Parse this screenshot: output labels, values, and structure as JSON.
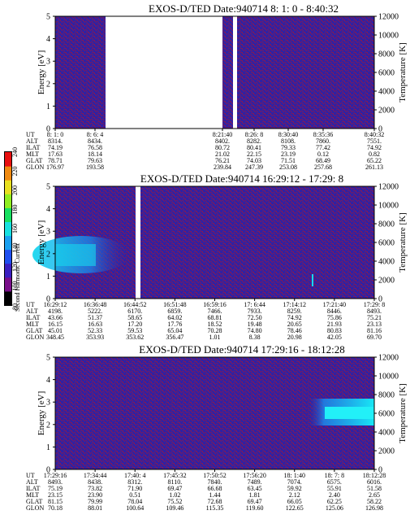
{
  "panels": [
    {
      "title": "EXOS-D/TED   Date:940714   8: 1: 0 - 8:40:32",
      "left_axis": {
        "label": "Energy [eV]",
        "range": [
          0,
          5
        ],
        "ticks": [
          "0",
          "1",
          "2",
          "3",
          "4",
          "5"
        ]
      },
      "right_axis": {
        "label": "Temperature [K]",
        "range": [
          0,
          12000
        ],
        "ticks": [
          "0",
          "2000",
          "4000",
          "6000",
          "8000",
          "10000",
          "12000"
        ]
      },
      "row_labels": [
        "UT",
        "ALT",
        "ILAT",
        "MLT",
        "GLAT",
        "GLON"
      ],
      "columns": [
        [
          "8: 1: 0",
          "8314.",
          "74.19",
          "17.63",
          "78.71",
          "176.97"
        ],
        [
          "8: 6: 4",
          "8434.",
          "76.58",
          "18.14",
          "79.63",
          "193.58"
        ],
        [
          "8:21:40",
          "8402.",
          "80.72",
          "21.02",
          "76.21",
          "239.84"
        ],
        [
          "8:26: 8",
          "8282.",
          "80.41",
          "22.15",
          "74.03",
          "247.39"
        ],
        [
          "8:30:40",
          "8108.",
          "79.33",
          "23.19",
          "71.51",
          "253.08"
        ],
        [
          "8:35:36",
          "7860.",
          "77.42",
          "0.12",
          "68.49",
          "257.68"
        ],
        [
          "8:40:32",
          "7551.",
          "74.92",
          "0.82",
          "65.22",
          "261.13"
        ]
      ]
    },
    {
      "title": "EXOS-D/TED   Date:940714   16:29:12 - 17:29: 8",
      "left_axis": {
        "label": "Energy [eV]",
        "range": [
          0,
          5
        ],
        "ticks": [
          "0",
          "1",
          "2",
          "3",
          "4",
          "5"
        ]
      },
      "right_axis": {
        "label": "Temperature [K]",
        "range": [
          0,
          12000
        ],
        "ticks": [
          "0",
          "2000",
          "4000",
          "6000",
          "8000",
          "10000",
          "12000"
        ]
      },
      "row_labels": [
        "UT",
        "ALT",
        "ILAT",
        "MLT",
        "GLAT",
        "GLON"
      ],
      "columns": [
        [
          "16:29:12",
          "4198.",
          "43.66",
          "16.15",
          "45.01",
          "348.45"
        ],
        [
          "16:36:48",
          "5222.",
          "51.37",
          "16.63",
          "52.33",
          "353.93"
        ],
        [
          "16:44:52",
          "6170.",
          "58.65",
          "17.20",
          "59.53",
          "353.62"
        ],
        [
          "16:51:48",
          "6859.",
          "64.02",
          "17.76",
          "65.04",
          "356.47"
        ],
        [
          "16:59:16",
          "7466.",
          "68.81",
          "18.52",
          "70.28",
          "1.01"
        ],
        [
          "17: 6:44",
          "7933.",
          "72.50",
          "19.48",
          "74.80",
          "8.38"
        ],
        [
          "17:14:12",
          "8259.",
          "74.92",
          "20.65",
          "78.46",
          "20.98"
        ],
        [
          "17:21:40",
          "8446.",
          "75.86",
          "21.93",
          "80.83",
          "42.05"
        ],
        [
          "17:29: 8",
          "8493.",
          "75.21",
          "23.13",
          "81.16",
          "69.70"
        ]
      ]
    },
    {
      "title": "EXOS-D/TED   Date:940714   17:29:16 - 18:12:28",
      "left_axis": {
        "label": "Energy [eV]",
        "range": [
          0,
          5
        ],
        "ticks": [
          "0",
          "1",
          "2",
          "3",
          "4",
          "5"
        ]
      },
      "right_axis": {
        "label": "Temperature [K]",
        "range": [
          0,
          12000
        ],
        "ticks": [
          "0",
          "2000",
          "4000",
          "6000",
          "8000",
          "10000",
          "12000"
        ]
      },
      "row_labels": [
        "UT",
        "ALT",
        "ILAT",
        "MLT",
        "GLAT",
        "GLON"
      ],
      "columns": [
        [
          "17:29:16",
          "8493.",
          "75.19",
          "23.15",
          "81.15",
          "70.18"
        ],
        [
          "17:34:44",
          "8438.",
          "73.82",
          "23.90",
          "79.99",
          "88.01"
        ],
        [
          "17:40: 4",
          "8312.",
          "71.90",
          "0.51",
          "78.04",
          "100.64"
        ],
        [
          "17:45:32",
          "8110.",
          "69.47",
          "1.02",
          "75.52",
          "109.46"
        ],
        [
          "17:50:52",
          "7840.",
          "66.68",
          "1.44",
          "72.68",
          "115.35"
        ],
        [
          "17:56:20",
          "7489.",
          "63.45",
          "1.81",
          "69.47",
          "119.60"
        ],
        [
          "18: 1:40",
          "7074.",
          "59.92",
          "2.12",
          "66.05",
          "122.65"
        ],
        [
          "18: 7: 8",
          "6575.",
          "55.91",
          "2.40",
          "62.25",
          "125.06"
        ],
        [
          "18:12:28",
          "6016.",
          "51.58",
          "2.65",
          "58.22",
          "126.98"
        ]
      ]
    }
  ],
  "colorbar": {
    "label": "Second Harmonic Current",
    "ticks": [
      "80",
      "100",
      "120",
      "140",
      "160",
      "180",
      "200",
      "220",
      "240"
    ]
  },
  "colors": {
    "background": "#2a22a8",
    "noise": "#8a1850",
    "gap": "#ffffff",
    "enhancement": "#18d8ee"
  },
  "chart_data": [
    {
      "type": "heatmap",
      "title": "EXOS-D/TED   Date:940714   8: 1: 0 - 8:40:32",
      "x": [
        "8: 1: 0",
        "8: 6: 4",
        "8:21:40",
        "8:26: 8",
        "8:30:40",
        "8:35:36",
        "8:40:32"
      ],
      "ylabel": "Energy [eV]",
      "ylim": [
        0,
        5
      ],
      "y2label": "Temperature [K]",
      "y2lim": [
        0,
        12000
      ],
      "data_gap": [
        "8: 6: 4",
        "8:21:40"
      ]
    },
    {
      "type": "heatmap",
      "title": "EXOS-D/TED   Date:940714   16:29:12 - 17:29: 8",
      "x": [
        "16:29:12",
        "16:36:48",
        "16:44:52",
        "16:51:48",
        "16:59:16",
        "17: 6:44",
        "17:14:12",
        "17:21:40",
        "17:29: 8"
      ],
      "ylabel": "Energy [eV]",
      "ylim": [
        0,
        5
      ],
      "y2label": "Temperature [K]",
      "y2lim": [
        0,
        12000
      ],
      "enhancement_energy_ev": [
        1.2,
        2.6
      ]
    },
    {
      "type": "heatmap",
      "title": "EXOS-D/TED   Date:940714   17:29:16 - 18:12:28",
      "x": [
        "17:29:16",
        "17:34:44",
        "17:40: 4",
        "17:45:32",
        "17:50:52",
        "17:56:20",
        "18: 1:40",
        "18: 7: 8",
        "18:12:28"
      ],
      "ylabel": "Energy [eV]",
      "ylim": [
        0,
        5
      ],
      "y2label": "Temperature [K]",
      "y2lim": [
        0,
        12000
      ],
      "enhancement_energy_ev": [
        2.2,
        3.0
      ]
    }
  ]
}
